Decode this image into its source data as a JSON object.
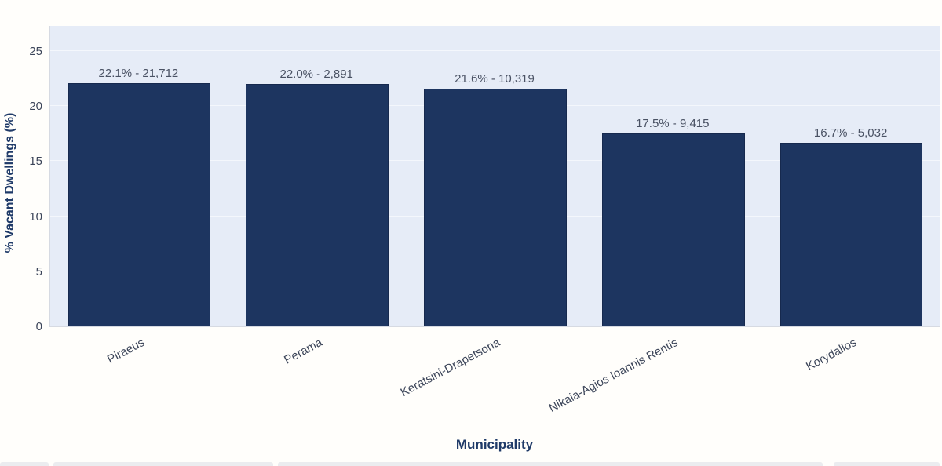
{
  "chart_data": {
    "type": "bar",
    "title": "",
    "xlabel": "Municipality",
    "ylabel": "% Vacant Dwellings (%)",
    "categories": [
      "Piraeus",
      "Perama",
      "Keratsini-Drapetsona",
      "Nikaia-Agios Ioannis Rentis",
      "Korydallos"
    ],
    "values": [
      22.1,
      22.0,
      21.6,
      17.5,
      16.7
    ],
    "counts": [
      21712,
      2891,
      10319,
      9415,
      5032
    ],
    "bar_labels": [
      "22.1% - 21,712",
      "22.0% - 2,891",
      "21.6% - 10,319",
      "17.5% - 9,415",
      "16.7% - 5,032"
    ],
    "y_ticks": [
      0,
      5,
      10,
      15,
      20,
      25
    ],
    "ylim": [
      0,
      27.35
    ],
    "grid": true,
    "legend": "none",
    "colors": {
      "bar_fill": "#1d3560",
      "bar_border": "#16294e",
      "plot_background": "#e6ecf7",
      "page_background": "#fffefb",
      "axis_title": "#1f3a68",
      "tick_label": "#3c4559",
      "value_label": "#4a5264"
    }
  }
}
